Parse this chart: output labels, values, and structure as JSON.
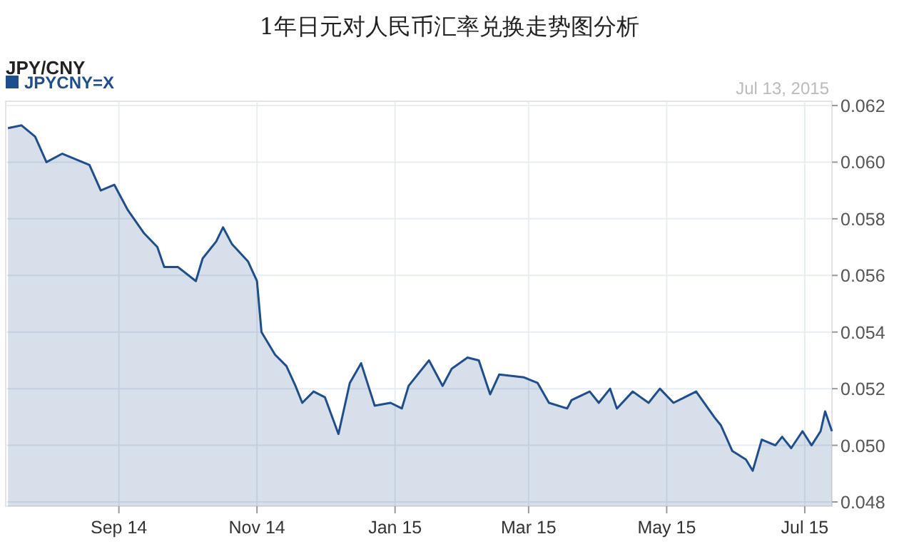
{
  "chart_data": {
    "type": "area",
    "title": "1年日元对人民币汇率兑换走势图分析",
    "subtitle": "JPY/CNY",
    "annotations": [
      "Jul 13, 2015"
    ],
    "x": [
      "2014-07-14",
      "2014-07-20",
      "2014-07-26",
      "2014-07-31",
      "2014-08-07",
      "2014-08-19",
      "2014-08-24",
      "2014-08-30",
      "2014-09-05",
      "2014-09-12",
      "2014-09-18",
      "2014-09-21",
      "2014-09-27",
      "2014-10-05",
      "2014-10-08",
      "2014-10-14",
      "2014-10-17",
      "2014-10-21",
      "2014-10-28",
      "2014-11-01",
      "2014-11-03",
      "2014-11-09",
      "2014-11-14",
      "2014-11-18",
      "2014-11-21",
      "2014-11-26",
      "2014-12-01",
      "2014-12-07",
      "2014-12-12",
      "2014-12-17",
      "2014-12-23",
      "2014-12-30",
      "2015-01-04",
      "2015-01-07",
      "2015-01-16",
      "2015-01-22",
      "2015-01-26",
      "2015-02-02",
      "2015-02-07",
      "2015-02-12",
      "2015-02-16",
      "2015-02-27",
      "2015-03-05",
      "2015-03-10",
      "2015-03-18",
      "2015-03-20",
      "2015-03-28",
      "2015-04-01",
      "2015-04-06",
      "2015-04-09",
      "2015-04-16",
      "2015-04-23",
      "2015-04-28",
      "2015-05-04",
      "2015-05-09",
      "2015-05-14",
      "2015-05-22",
      "2015-05-25",
      "2015-05-30",
      "2015-06-05",
      "2015-06-08",
      "2015-06-12",
      "2015-06-18",
      "2015-06-21",
      "2015-06-25",
      "2015-06-30",
      "2015-07-04",
      "2015-07-08",
      "2015-07-10",
      "2015-07-13"
    ],
    "series": [
      {
        "name": "JPYCNY=X",
        "color": "#1f4e8c",
        "values": [
          0.0612,
          0.0613,
          0.0609,
          0.06,
          0.0603,
          0.0599,
          0.059,
          0.0592,
          0.0583,
          0.0575,
          0.057,
          0.0563,
          0.0563,
          0.0558,
          0.0566,
          0.0572,
          0.0577,
          0.0571,
          0.0565,
          0.0558,
          0.054,
          0.0532,
          0.0528,
          0.0521,
          0.0515,
          0.0519,
          0.0517,
          0.0504,
          0.0522,
          0.0529,
          0.0514,
          0.0515,
          0.0513,
          0.0521,
          0.053,
          0.0521,
          0.0527,
          0.0531,
          0.053,
          0.0518,
          0.0525,
          0.0524,
          0.0522,
          0.0515,
          0.0513,
          0.0516,
          0.0519,
          0.0515,
          0.052,
          0.0513,
          0.0519,
          0.0515,
          0.052,
          0.0515,
          0.0517,
          0.0519,
          0.051,
          0.0507,
          0.0498,
          0.0495,
          0.0491,
          0.0502,
          0.05,
          0.0503,
          0.0499,
          0.0505,
          0.05,
          0.0505,
          0.0512,
          0.0505
        ]
      }
    ],
    "xlim": [
      "2014-07-13",
      "2015-07-13"
    ],
    "xticks": [
      {
        "value": "2014-09-01",
        "label": "Sep 14"
      },
      {
        "value": "2014-11-01",
        "label": "Nov 14"
      },
      {
        "value": "2015-01-01",
        "label": "Jan 15"
      },
      {
        "value": "2015-03-01",
        "label": "Mar 15"
      },
      {
        "value": "2015-05-01",
        "label": "May 15"
      },
      {
        "value": "2015-07-01",
        "label": "Jul 15"
      }
    ],
    "ylim": [
      0.048,
      0.062
    ],
    "yticks": [
      {
        "value": 0.048,
        "label": "0.048"
      },
      {
        "value": 0.05,
        "label": "0.050"
      },
      {
        "value": 0.052,
        "label": "0.052"
      },
      {
        "value": 0.054,
        "label": "0.054"
      },
      {
        "value": 0.056,
        "label": "0.056"
      },
      {
        "value": 0.058,
        "label": "0.058"
      },
      {
        "value": 0.06,
        "label": "0.060"
      },
      {
        "value": 0.062,
        "label": "0.062"
      }
    ],
    "grid": true,
    "legend": "top left"
  }
}
